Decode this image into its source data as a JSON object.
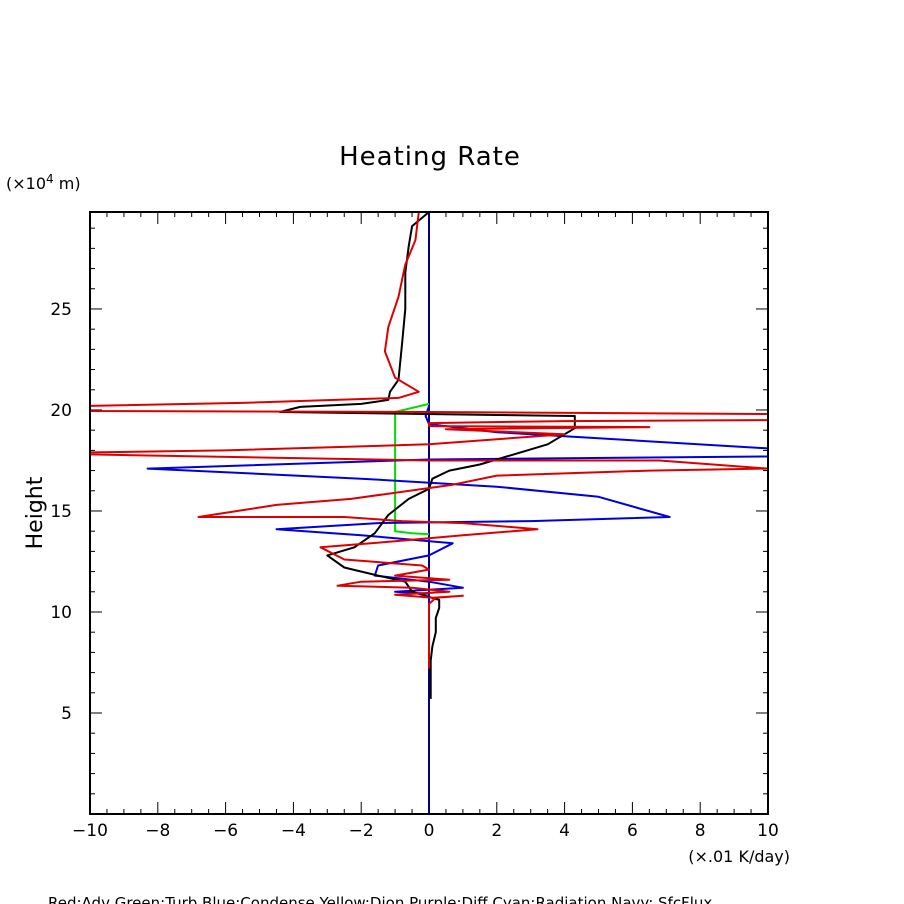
{
  "chart_data": {
    "type": "line",
    "title": "Heating Rate",
    "xlabel": "(×.01 K/day)",
    "ylabel": "Height",
    "y_unit_label_prefix": "(×10",
    "y_unit_label_sup": "4",
    "y_unit_label_suffix": " m)",
    "legend_text": "Red:Adv  Green:Turb  Blue:Condense  Yellow:Dion  Purple:Diff  Cyan:Radiation  Navy: SfcFlux",
    "xlim": [
      -10,
      10
    ],
    "ylim": [
      0,
      29.8
    ],
    "x_ticks": [
      -10,
      -8,
      -6,
      -4,
      -2,
      0,
      2,
      4,
      6,
      8,
      10
    ],
    "x_tick_labels": [
      "−10",
      "−8",
      "−6",
      "−4",
      "−2",
      "0",
      "2",
      "4",
      "6",
      "8",
      "10"
    ],
    "y_ticks": [
      5,
      10,
      15,
      20,
      25
    ],
    "y_tick_labels": [
      "5",
      "10",
      "15",
      "20",
      "25"
    ],
    "grid": false,
    "series": [
      {
        "color": "#000080",
        "points": [
          [
            0,
            0
          ],
          [
            0,
            29.8
          ]
        ]
      },
      {
        "color": "#00dd00",
        "points": [
          [
            0,
            20.3
          ],
          [
            -1,
            19.9
          ],
          [
            -1,
            14.0
          ],
          [
            -0.5,
            13.9
          ],
          [
            0,
            13.85
          ]
        ]
      },
      {
        "color": "#0000dd",
        "points": [
          [
            0,
            20.2
          ],
          [
            -0.1,
            19.7
          ],
          [
            0,
            19.3
          ],
          [
            2,
            18.9
          ],
          [
            5,
            18.6
          ],
          [
            10,
            18.1
          ],
          [
            10,
            17.7
          ],
          [
            0,
            17.55
          ],
          [
            -8.3,
            17.1
          ],
          [
            -2,
            16.6
          ],
          [
            2,
            16.2
          ],
          [
            5,
            15.7
          ],
          [
            7.1,
            14.7
          ],
          [
            3,
            14.5
          ],
          [
            -1.5,
            14.4
          ],
          [
            -4.5,
            14.1
          ],
          [
            -2,
            13.8
          ],
          [
            0.7,
            13.4
          ],
          [
            0,
            12.8
          ],
          [
            -1.5,
            12.3
          ],
          [
            -1.6,
            11.8
          ],
          [
            0,
            11.5
          ],
          [
            1,
            11.2
          ],
          [
            -1,
            11.0
          ],
          [
            0,
            10.9
          ],
          [
            0,
            10.6
          ],
          [
            0,
            10.3
          ]
        ]
      },
      {
        "color": "#000000",
        "points": [
          [
            0,
            29.8
          ],
          [
            -0.5,
            29.1
          ],
          [
            -0.6,
            28.1
          ],
          [
            -0.7,
            26.8
          ],
          [
            -0.7,
            25.0
          ],
          [
            -0.8,
            23.2
          ],
          [
            -0.9,
            21.5
          ],
          [
            -1.15,
            20.9
          ],
          [
            -1.2,
            20.5
          ],
          [
            -2,
            20.3
          ],
          [
            -3.8,
            20.15
          ],
          [
            -4.4,
            19.9
          ],
          [
            2,
            19.75
          ],
          [
            4.3,
            19.7
          ],
          [
            4.3,
            19.1
          ],
          [
            3.5,
            18.3
          ],
          [
            2.5,
            17.8
          ],
          [
            1.5,
            17.3
          ],
          [
            0.6,
            17.0
          ],
          [
            0.1,
            16.6
          ],
          [
            0,
            16.1
          ],
          [
            -0.6,
            15.6
          ],
          [
            -1.2,
            14.8
          ],
          [
            -1.6,
            13.9
          ],
          [
            -2.2,
            13.2
          ],
          [
            -3,
            12.8
          ],
          [
            -2.5,
            12.2
          ],
          [
            -1.5,
            11.8
          ],
          [
            -0.7,
            11.5
          ],
          [
            -0.5,
            11.0
          ],
          [
            -0.1,
            10.8
          ],
          [
            0.3,
            10.6
          ],
          [
            0.3,
            10.2
          ],
          [
            0.2,
            9.7
          ],
          [
            0.2,
            9.0
          ],
          [
            0.1,
            8.3
          ],
          [
            0.05,
            7.6
          ],
          [
            0.05,
            6.6
          ],
          [
            0.05,
            5.7
          ]
        ]
      },
      {
        "color": "#dd0000",
        "points": [
          [
            -0.3,
            29.8
          ],
          [
            -0.4,
            28.4
          ],
          [
            -0.7,
            27.2
          ],
          [
            -0.9,
            25.6
          ],
          [
            -1.2,
            24.1
          ],
          [
            -1.3,
            22.9
          ],
          [
            -1.0,
            21.6
          ],
          [
            -0.3,
            20.9
          ],
          [
            -0.9,
            20.6
          ],
          [
            -5.5,
            20.35
          ],
          [
            -10,
            20.2
          ],
          [
            -10,
            19.95
          ],
          [
            0,
            19.9
          ],
          [
            10,
            19.8
          ],
          [
            10,
            19.5
          ],
          [
            4,
            19.45
          ],
          [
            0,
            19.35
          ],
          [
            0,
            19.2
          ],
          [
            6.5,
            19.15
          ],
          [
            0.5,
            19.05
          ],
          [
            4,
            18.8
          ],
          [
            0,
            18.3
          ],
          [
            -6,
            18.0
          ],
          [
            -10,
            17.9
          ],
          [
            -10,
            17.8
          ],
          [
            0,
            17.5
          ],
          [
            6.8,
            17.5
          ],
          [
            10,
            17.1
          ],
          [
            6.5,
            17.0
          ],
          [
            2,
            16.75
          ],
          [
            0.7,
            16.3
          ],
          [
            -2.3,
            15.6
          ],
          [
            -4.5,
            15.3
          ],
          [
            -6.8,
            14.7
          ],
          [
            -2.5,
            14.7
          ],
          [
            -0.8,
            14.5
          ],
          [
            1,
            14.4
          ],
          [
            3.2,
            14.1
          ],
          [
            1,
            13.8
          ],
          [
            -1,
            13.5
          ],
          [
            -3.2,
            13.2
          ],
          [
            -2.5,
            12.6
          ],
          [
            -0.2,
            12.3
          ],
          [
            0,
            12.1
          ],
          [
            -1,
            11.8
          ],
          [
            0.6,
            11.6
          ],
          [
            -2,
            11.5
          ],
          [
            -2.7,
            11.3
          ],
          [
            -0.5,
            11.2
          ],
          [
            0.6,
            11.0
          ],
          [
            -1,
            10.85
          ],
          [
            0.1,
            10.7
          ],
          [
            1,
            10.8
          ],
          [
            0.2,
            10.7
          ],
          [
            0,
            10.4
          ],
          [
            0,
            9.7
          ],
          [
            0,
            8.5
          ],
          [
            0,
            7.2
          ]
        ]
      }
    ]
  }
}
